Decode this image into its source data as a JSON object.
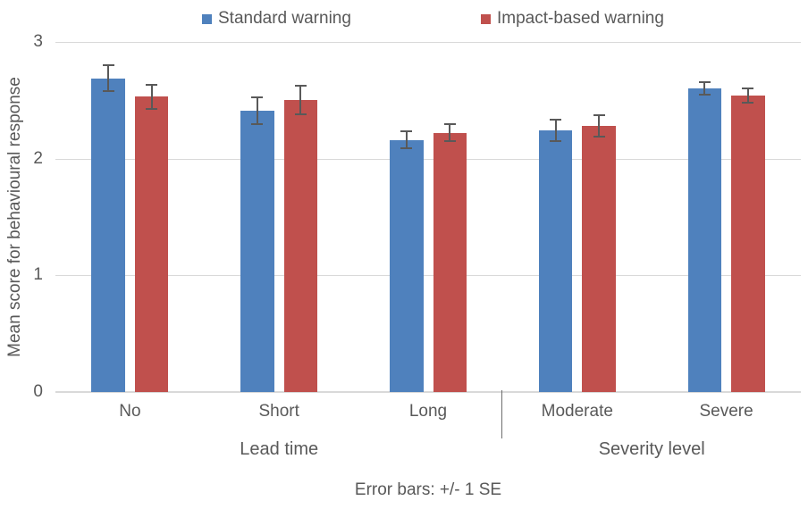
{
  "chart_data": {
    "type": "bar",
    "title": "",
    "categories": [
      "No",
      "Short",
      "Long",
      "Moderate",
      "Severe"
    ],
    "series": [
      {
        "name": "Standard warning",
        "color": "#4F81BD",
        "values": [
          2.69,
          2.41,
          2.16,
          2.24,
          2.6
        ],
        "se": [
          0.12,
          0.12,
          0.08,
          0.1,
          0.06
        ]
      },
      {
        "name": "Impact-based warning",
        "color": "#C0504D",
        "values": [
          2.53,
          2.5,
          2.22,
          2.28,
          2.54
        ],
        "se": [
          0.11,
          0.13,
          0.08,
          0.1,
          0.07
        ]
      }
    ],
    "group_labels": [
      {
        "label": "Lead time",
        "categories": [
          "No",
          "Short",
          "Long"
        ]
      },
      {
        "label": "Severity level",
        "categories": [
          "Moderate",
          "Severe"
        ]
      }
    ],
    "ylabel": "Mean score for behavioural response",
    "xlabel": "",
    "yticks": [
      0,
      1,
      2,
      3
    ],
    "ylim": [
      0,
      3
    ],
    "grid": "horizontal",
    "legend_position": "top",
    "caption": "Error bars: +/- 1 SE",
    "colors": {
      "gridline": "#D9D9D9",
      "axis_line": "#D9D9D9",
      "error_bar": "#595959",
      "text": "#595959",
      "divider": "#6e6e6e"
    }
  }
}
